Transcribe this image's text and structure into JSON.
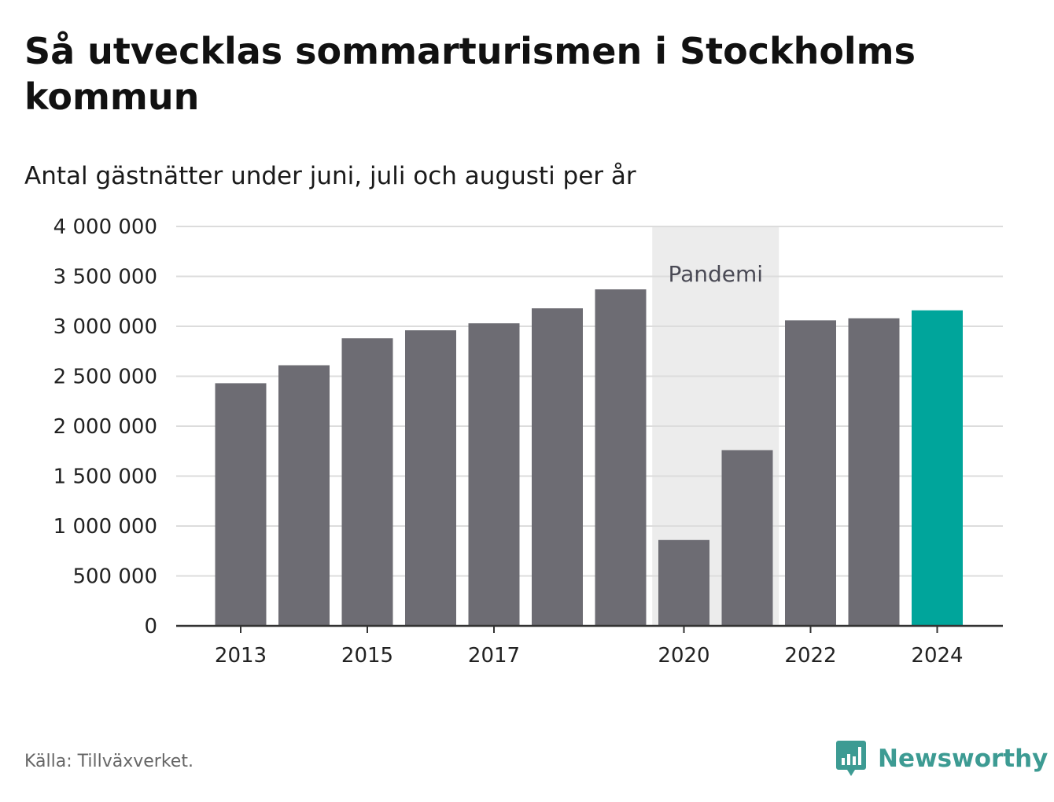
{
  "header": {
    "title": "Så utvecklas sommarturismen i Stockholms kommun",
    "subtitle": "Antal gästnätter under juni, juli och augusti per år"
  },
  "footer": {
    "source": "Källa: Tillväxverket.",
    "brand": "Newsworthy",
    "brand_icon": "bar-chart-speech-bubble-icon"
  },
  "colors": {
    "bar": "#6d6c73",
    "highlight": "#00a59b",
    "pandemic_band": "#ececec",
    "grid": "#dcdcdc",
    "axis": "#333333",
    "brand": "#3d9b93"
  },
  "chart_data": {
    "type": "bar",
    "title": "Så utvecklas sommarturismen i Stockholms kommun",
    "subtitle": "Antal gästnätter under juni, juli och augusti per år",
    "categories": [
      2013,
      2014,
      2015,
      2016,
      2017,
      2018,
      2019,
      2020,
      2021,
      2022,
      2023,
      2024
    ],
    "values": [
      2430000,
      2610000,
      2880000,
      2960000,
      3030000,
      3180000,
      3370000,
      860000,
      1760000,
      3060000,
      3080000,
      3160000
    ],
    "highlight_category": 2024,
    "ylim": [
      0,
      4000000
    ],
    "yticks": [
      0,
      500000,
      1000000,
      1500000,
      2000000,
      2500000,
      3000000,
      3500000,
      4000000
    ],
    "ytick_labels": [
      "0",
      "500 000",
      "1 000 000",
      "1 500 000",
      "2 000 000",
      "2 500 000",
      "3 000 000",
      "3 500 000",
      "4 000 000"
    ],
    "xtick_labels": [
      "2013",
      "2015",
      "2017",
      "2020",
      "2022",
      "2024"
    ],
    "xlabel": "",
    "ylabel": "",
    "grid": true,
    "legend": "none",
    "annotations": [
      {
        "label": "Pandemi",
        "x_start": 2020,
        "x_end": 2021
      }
    ]
  }
}
